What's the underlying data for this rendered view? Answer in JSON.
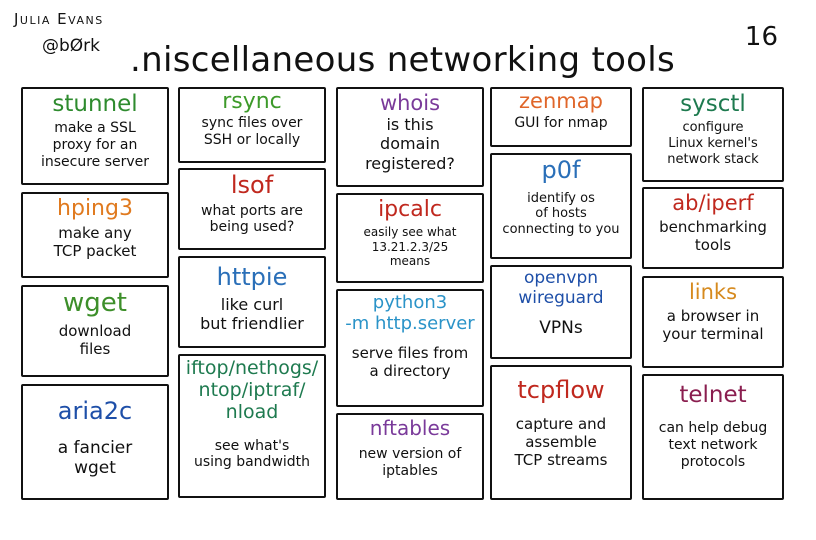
{
  "header": {
    "author": "Julia Evans",
    "handle": "@bØrk",
    "title": ".niscellaneous networking tools",
    "page_number": "16"
  },
  "tools": [
    {
      "name": "stunnel",
      "desc": "make a SSL\nproxy for an\ninsecure server",
      "color": "#2e8b2e"
    },
    {
      "name": "hping3",
      "desc": "make any\nTCP packet",
      "color": "#e07a1f"
    },
    {
      "name": "wget",
      "desc": "download\nfiles",
      "color": "#3d8f2a"
    },
    {
      "name": "aria2c",
      "desc": "a fancier\nwget",
      "color": "#1e4fa8"
    },
    {
      "name": "rsync",
      "desc": "sync files over\nSSH or locally",
      "color": "#3d9a2a"
    },
    {
      "name": "lsof",
      "desc": "what ports are\nbeing used?",
      "color": "#c0281e"
    },
    {
      "name": "httpie",
      "desc": "like curl\nbut friendlier",
      "color": "#2a6fb8"
    },
    {
      "name": "iftop/nethogs/\nntop/iptraf/\nnload",
      "desc": "see what's\nusing bandwidth",
      "color": "#1e7a4f"
    },
    {
      "name": "whois",
      "desc": "is this\ndomain\nregistered?",
      "color": "#7a3a9a"
    },
    {
      "name": "ipcalc",
      "desc": "easily see what\n13.21.2.3/25\nmeans",
      "color": "#c0281e"
    },
    {
      "name": "python3\n-m http.server",
      "desc": "serve files from\na directory",
      "color": "#2a93c8"
    },
    {
      "name": "nftables",
      "desc": "new version of\niptables",
      "color": "#7a3a9a"
    },
    {
      "name": "zenmap",
      "desc": "GUI for nmap",
      "color": "#e0662a"
    },
    {
      "name": "p0f",
      "desc": "identify os\nof hosts\nconnecting to you",
      "color": "#2a6fb8"
    },
    {
      "name": "openvpn\nwireguard",
      "desc": "VPNs",
      "color": "#1e4fa8"
    },
    {
      "name": "tcpflow",
      "desc": "capture and\nassemble\nTCP streams",
      "color": "#c0281e"
    },
    {
      "name": "sysctl",
      "desc": "configure\nLinux kernel's\nnetwork stack",
      "color": "#1e7a4f"
    },
    {
      "name": "ab/iperf",
      "desc": "benchmarking\ntools",
      "color": "#c0281e"
    },
    {
      "name": "links",
      "desc": "a browser in\nyour terminal",
      "color": "#d68a1e"
    },
    {
      "name": "telnet",
      "desc": "can help debug\ntext network\nprotocols",
      "color": "#8a1e4f"
    }
  ]
}
